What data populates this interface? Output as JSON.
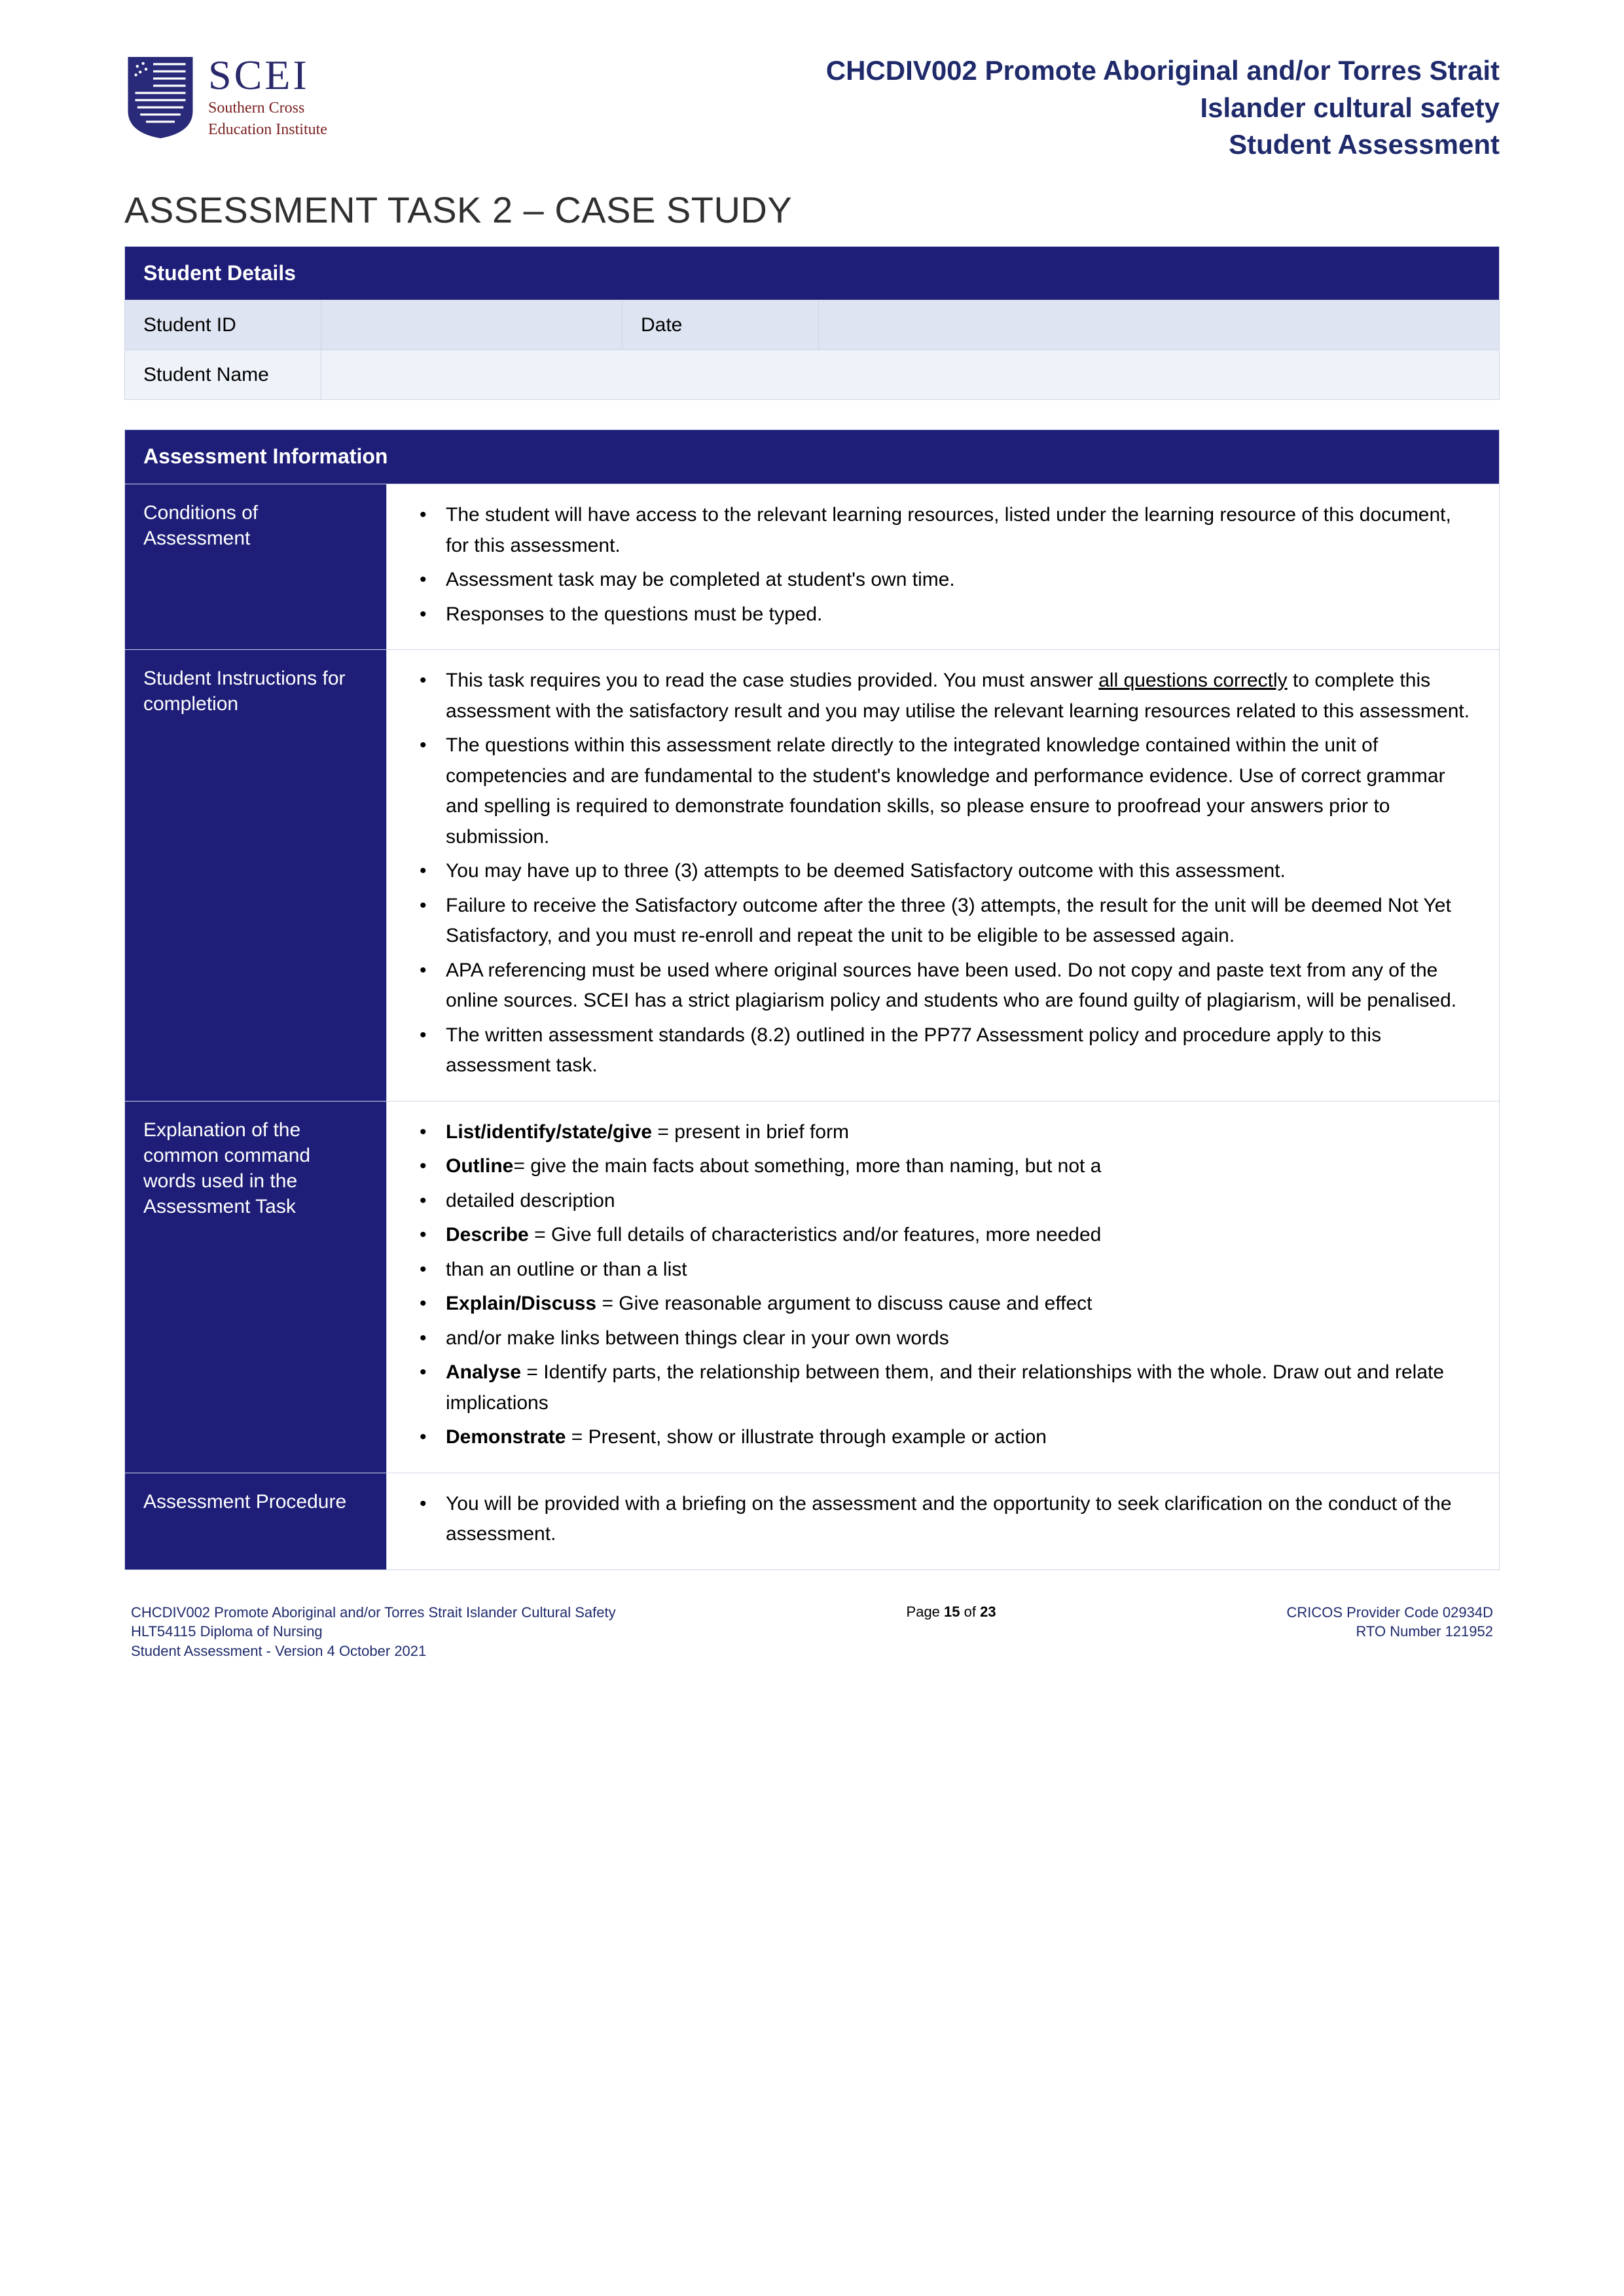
{
  "header": {
    "logo_letters": "SCEI",
    "logo_sub_line1": "Southern Cross",
    "logo_sub_line2": "Education Institute",
    "title_line1": "CHCDIV002 Promote Aboriginal and/or Torres Strait",
    "title_line2": "Islander cultural safety",
    "title_line3": "Student Assessment"
  },
  "main_title": "ASSESSMENT TASK 2 – CASE STUDY",
  "student_details": {
    "header": "Student Details",
    "id_label": "Student ID",
    "id_value": "",
    "date_label": "Date",
    "date_value": "",
    "name_label": "Student Name",
    "name_value": ""
  },
  "assessment_info": {
    "header": "Assessment Information",
    "rows": [
      {
        "label": "Conditions of Assessment",
        "items": [
          {
            "text": "The student will have access to the relevant learning resources, listed under the learning resource of this document, for this assessment."
          },
          {
            "text": "Assessment task may be completed at student's own time."
          },
          {
            "text": "Responses to the questions must be typed."
          }
        ]
      },
      {
        "label": "Student Instructions for completion",
        "items": [
          {
            "text_pre": "This task requires you to read the case studies provided. You must answer ",
            "underline": "all questions correctly",
            "text_post": " to complete this assessment with the satisfactory result and you may utilise the relevant learning resources related to this assessment."
          },
          {
            "text": "The questions within this assessment relate directly to the integrated knowledge contained within the unit of competencies and are fundamental to the student's knowledge and performance evidence. Use of correct grammar and spelling is required to demonstrate foundation skills, so please ensure to proofread your answers prior to submission."
          },
          {
            "text": "You may have up to three (3) attempts to be deemed Satisfactory outcome with this assessment."
          },
          {
            "text": "Failure to receive the Satisfactory outcome after the three (3) attempts, the result for the unit will be deemed Not Yet Satisfactory, and you must re-enroll and repeat the unit to be eligible to be assessed again."
          },
          {
            "text": "APA referencing must be used where original sources have been used.  Do not copy and paste text from any of the online sources. SCEI has a strict plagiarism policy and students who are found guilty of plagiarism, will be penalised."
          },
          {
            "text": "The written assessment standards (8.2) outlined in the PP77 Assessment policy and procedure apply to this assessment task."
          }
        ]
      },
      {
        "label": "Explanation of the common command words used in the Assessment Task",
        "items": [
          {
            "bold": "List/identify/state/give",
            "text_post": " = present in brief form"
          },
          {
            "bold": "Outline",
            "text_post": "= give the main facts about something, more than naming, but not a"
          },
          {
            "text": "detailed description"
          },
          {
            "bold": "Describe",
            "text_post": " = Give full details of characteristics and/or features, more needed"
          },
          {
            "text": "than an outline or than a list"
          },
          {
            "bold": "Explain/Discuss",
            "text_post": " = Give reasonable argument to discuss cause and effect"
          },
          {
            "text": "and/or make links between things clear in your own words"
          },
          {
            "bold": "Analyse",
            "text_post": " = Identify parts, the relationship between them, and their relationships with the whole. Draw out and relate implications"
          },
          {
            "bold": "Demonstrate",
            "text_post": " = Present, show or illustrate through example or action"
          }
        ]
      },
      {
        "label": "Assessment Procedure",
        "items": [
          {
            "text": "You will be provided with a briefing on the assessment and the opportunity to seek clarification on the conduct of the assessment."
          }
        ]
      }
    ]
  },
  "footer": {
    "left_line1": "CHCDIV002 Promote Aboriginal and/or Torres Strait Islander Cultural Safety",
    "left_line2": "HLT54115 Diploma of Nursing",
    "left_line3": "Student Assessment -  Version 4 October 2021",
    "page_prefix": "Page ",
    "page_bold": "15",
    "page_mid": " of ",
    "page_total": "23",
    "right_line1": "CRICOS Provider Code 02934D",
    "right_line2": "RTO Number 121952"
  },
  "colors": {
    "primary_navy": "#1e1e78",
    "header_text": "#1f2a6b",
    "row_light": "#dee4f1",
    "row_lighter": "#eef2f9",
    "border": "#cfd6e4",
    "logo_maroon": "#7a1f1f"
  }
}
